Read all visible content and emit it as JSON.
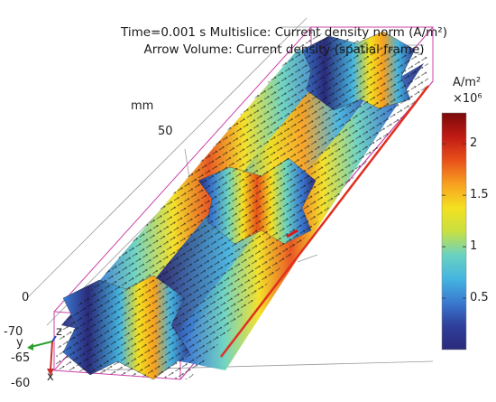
{
  "title_line1": "Time=0.001 s   Multislice: Current density norm (A/m²)",
  "title_line2": "Arrow Volume: Current density (spatial frame)",
  "axis": {
    "unit": "mm",
    "labels": [
      "50",
      "0",
      "-70",
      "-65",
      "-60"
    ],
    "triad": {
      "x": "x",
      "y": "y",
      "z": "z"
    }
  },
  "colorbar": {
    "unit": "A/m²",
    "multiplier": "×10⁶",
    "ticks": [
      "2",
      "1.5",
      "1",
      "0.5"
    ],
    "tick_values": [
      2,
      1.5,
      1,
      0.5
    ],
    "range": [
      0.0,
      2.3
    ],
    "colormap": [
      "#2a2a7a",
      "#2f3f9a",
      "#3a7ad0",
      "#45b5e0",
      "#6ad2c0",
      "#c8e040",
      "#f4e020",
      "#f7a020",
      "#e8501a",
      "#c01a14",
      "#7a0a0a"
    ]
  },
  "chart_data": {
    "type": "heatmap",
    "title": "Time=0.001 s   Multislice: Current density norm (A/m²)",
    "subtitle": "Arrow Volume: Current density (spatial frame)",
    "color_range": [
      0.0,
      2.3
    ],
    "color_multiplier": "×10⁶",
    "color_unit": "A/m²",
    "colorbar_ticks": [
      0.5,
      1,
      1.5,
      2
    ]
  },
  "colors": {
    "frame": "#cc44aa",
    "grid": "#888888"
  }
}
